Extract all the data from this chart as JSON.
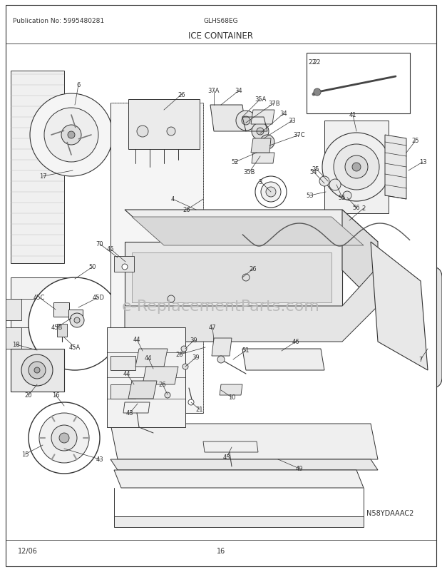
{
  "pub_no_text": "Publication No: 5995480281",
  "model_text": "GLHS68EG",
  "title_text": "ICE CONTAINER",
  "date_text": "12/06",
  "page_text": "16",
  "diagram_code": "N58YDAAAC2",
  "watermark": "e-ReplacementParts.com",
  "bg_color": "#ffffff",
  "border_color": "#000000",
  "line_color": "#333333",
  "text_color": "#333333",
  "light_gray": "#cccccc",
  "mid_gray": "#999999",
  "dark_gray": "#555555",
  "page_width": 6.2,
  "page_height": 8.03
}
